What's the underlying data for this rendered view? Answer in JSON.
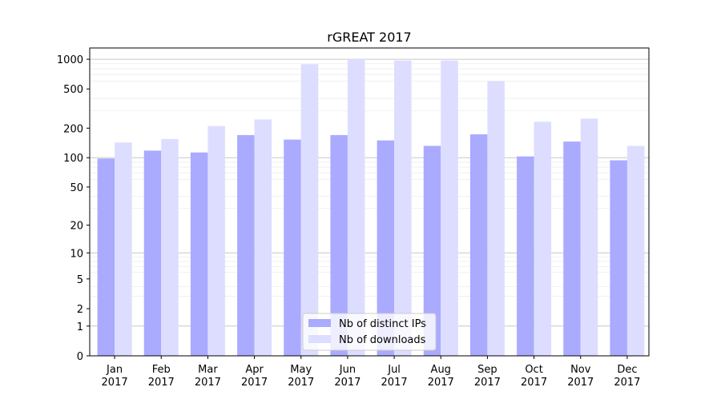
{
  "chart_data": {
    "type": "bar",
    "title": "rGREAT 2017",
    "xlabel": "",
    "ylabel": "",
    "y_scale": "log(1+y)",
    "ylim": [
      0,
      1300
    ],
    "y_ticks": [
      0,
      1,
      2,
      5,
      10,
      20,
      50,
      100,
      200,
      500,
      1000
    ],
    "grid": "horizontal",
    "legend_position": "lower center",
    "categories": [
      "Jan\n2017",
      "Feb\n2017",
      "Mar\n2017",
      "Apr\n2017",
      "May\n2017",
      "Jun\n2017",
      "Jul\n2017",
      "Aug\n2017",
      "Sep\n2017",
      "Oct\n2017",
      "Nov\n2017",
      "Dec\n2017"
    ],
    "series": [
      {
        "name": "Nb of distinct IPs",
        "color": "#aaaaff",
        "values": [
          98,
          118,
          113,
          170,
          153,
          170,
          150,
          132,
          173,
          103,
          146,
          94
        ]
      },
      {
        "name": "Nb of downloads",
        "color": "#ddddff",
        "values": [
          143,
          155,
          210,
          245,
          890,
          1000,
          970,
          970,
          600,
          232,
          250,
          132
        ]
      }
    ]
  }
}
